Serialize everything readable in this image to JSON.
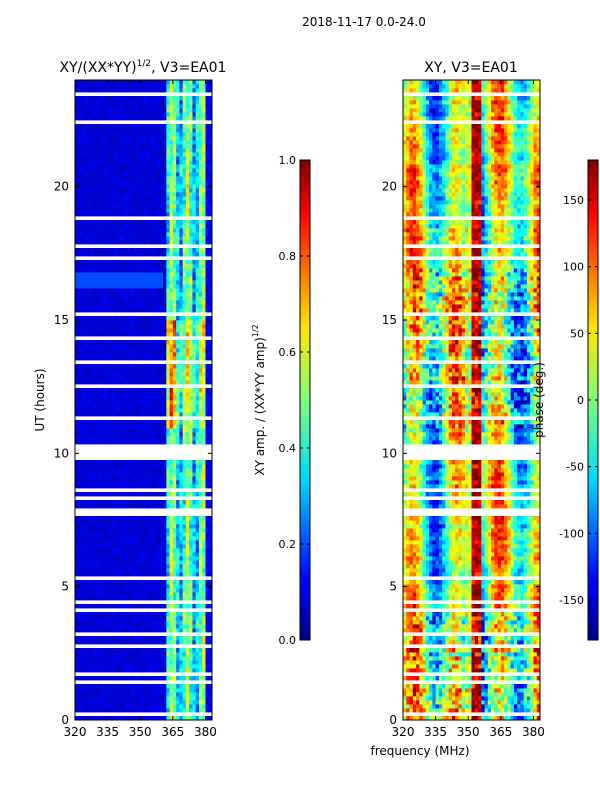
{
  "suptitle": "2018-11-17 0.0-24.0",
  "shared_xlabel": "frequency (MHz)",
  "colors": {
    "background": "#ffffff",
    "axis": "#000000",
    "gap": "#ffffff"
  },
  "chart_data": [
    {
      "type": "heatmap",
      "title_prefix": "XY/(XX*YY)",
      "title_sup": "1/2",
      "title_suffix": ", V3=EA01",
      "ylabel": "UT (hours)",
      "x": {
        "lim": [
          320,
          383
        ],
        "ticks": [
          "320",
          "335",
          "350",
          "365",
          "380"
        ],
        "tick_values": [
          320,
          335,
          350,
          365,
          380
        ]
      },
      "y": {
        "lim": [
          0,
          24
        ],
        "ticks": [
          "0",
          "5",
          "10",
          "15",
          "20"
        ],
        "tick_values": [
          0,
          5,
          10,
          15,
          20
        ]
      },
      "colorbar": {
        "label_main": "XY amp. / (XX*YY amp)",
        "label_sup": "1/2",
        "lim": [
          0.0,
          1.0
        ],
        "ticks": [
          "0.0",
          "0.2",
          "0.4",
          "0.6",
          "0.8",
          "1.0"
        ],
        "tick_values": [
          0.0,
          0.2,
          0.4,
          0.6,
          0.8,
          1.0
        ],
        "colormap": "jet"
      },
      "description_value_pattern": "low (~0.05) below 360 MHz, elevated (0.3-0.7) between 362 and 380 MHz"
    },
    {
      "type": "heatmap",
      "title": "XY, V3=EA01",
      "x": {
        "lim": [
          320,
          383
        ],
        "ticks": [
          "320",
          "335",
          "350",
          "365",
          "380"
        ],
        "tick_values": [
          320,
          335,
          350,
          365,
          380
        ]
      },
      "y": {
        "lim": [
          0,
          24
        ],
        "ticks": [
          "0",
          "5",
          "10",
          "15",
          "20"
        ],
        "tick_values": [
          0,
          5,
          10,
          15,
          20
        ]
      },
      "colorbar": {
        "label": "phase (deg.)",
        "lim": [
          -180,
          180
        ],
        "ticks": [
          "-150",
          "-100",
          "-50",
          "0",
          "50",
          "100",
          "150"
        ],
        "tick_values": [
          -150,
          -100,
          -50,
          0,
          50,
          100,
          150
        ],
        "colormap": "jet"
      }
    }
  ],
  "gap_hours": [
    [
      0.2,
      0.3
    ],
    [
      1.4,
      1.5
    ],
    [
      1.7,
      1.75
    ],
    [
      2.75,
      2.85
    ],
    [
      3.2,
      3.3
    ],
    [
      4.1,
      4.2
    ],
    [
      4.4,
      4.45
    ],
    [
      4.9,
      5.0
    ],
    [
      5.3,
      5.35
    ],
    [
      5.8,
      5.9
    ],
    [
      6.3,
      6.35
    ],
    [
      6.7,
      6.8
    ],
    [
      7.2,
      7.25
    ],
    [
      7.6,
      8.0
    ],
    [
      8.3,
      8.35
    ],
    [
      8.6,
      8.65
    ],
    [
      9.0,
      9.05
    ],
    [
      9.8,
      10.4
    ],
    [
      11.2,
      11.4
    ],
    [
      12.0,
      12.05
    ],
    [
      12.5,
      12.55
    ],
    [
      12.9,
      12.95
    ],
    [
      13.4,
      13.45
    ],
    [
      13.8,
      13.85
    ],
    [
      14.3,
      14.35
    ],
    [
      15.2,
      15.3
    ],
    [
      16.0,
      16.1
    ],
    [
      16.8,
      16.85
    ],
    [
      17.3,
      17.35
    ],
    [
      17.7,
      17.9
    ],
    [
      18.4,
      18.45
    ],
    [
      18.8,
      18.9
    ],
    [
      19.3,
      19.35
    ],
    [
      19.8,
      19.85
    ],
    [
      20.4,
      20.45
    ],
    [
      21.0,
      21.05
    ],
    [
      21.7,
      21.75
    ],
    [
      22.4,
      22.45
    ],
    [
      23.1,
      23.15
    ],
    [
      23.4,
      23.5
    ],
    [
      23.7,
      23.75
    ]
  ]
}
